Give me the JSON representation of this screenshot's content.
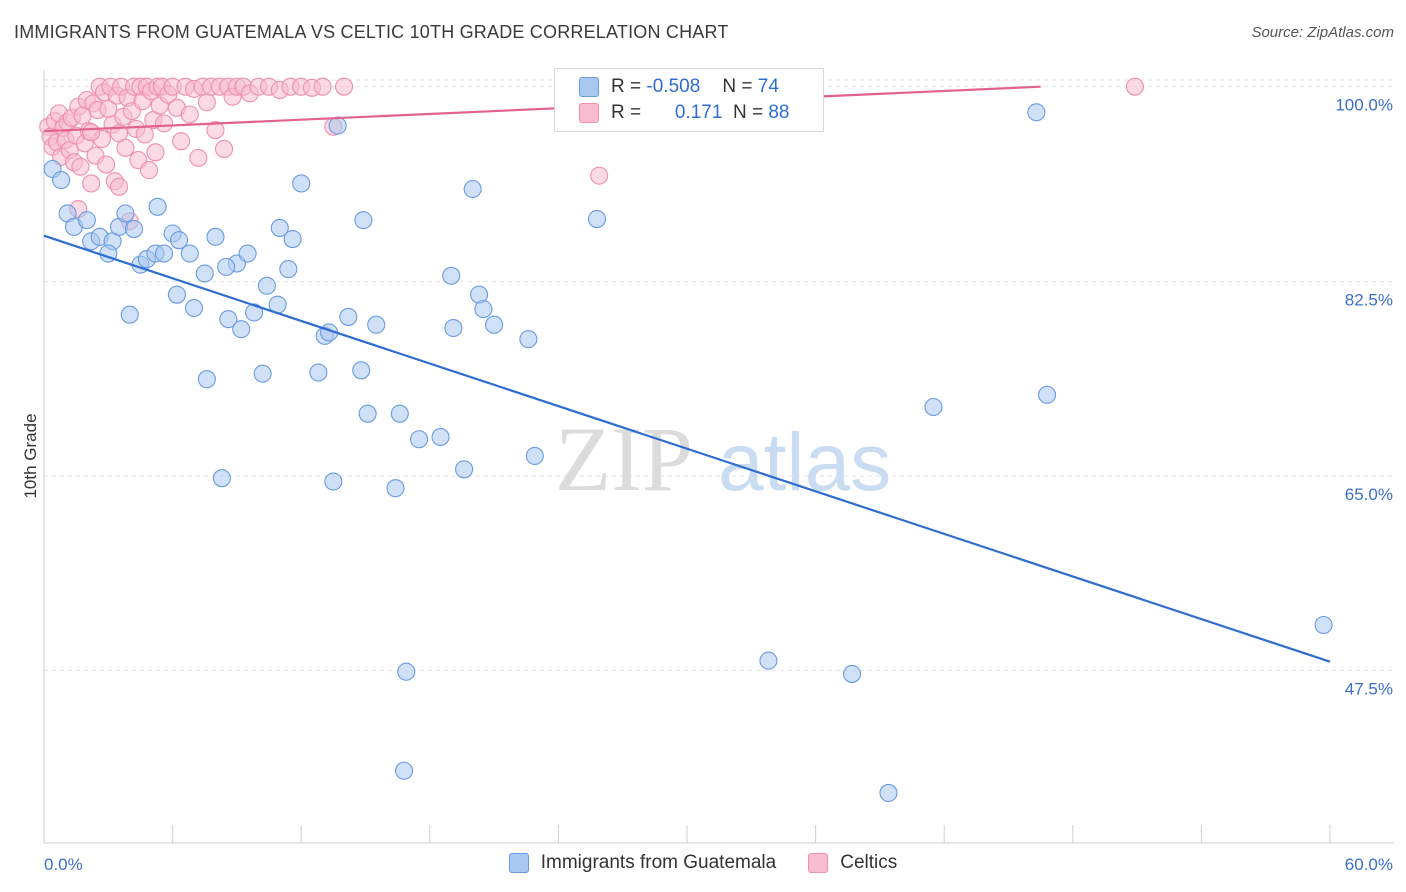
{
  "header": {
    "title": "IMMIGRANTS FROM GUATEMALA VS CELTIC 10TH GRADE CORRELATION CHART",
    "source": "Source: ZipAtlas.com"
  },
  "watermark": {
    "zip": "ZIP",
    "atlas": "atlas"
  },
  "legend": {
    "r_label": "R =",
    "n_label": "N =",
    "rows": [
      {
        "r": "-0.508",
        "n": "74",
        "color": "#a9c8f0",
        "border": "#6a9be0"
      },
      {
        "r": "0.171",
        "n": "88",
        "color": "#f8bcd0",
        "border": "#ee8fb0"
      }
    ]
  },
  "chart_data": {
    "type": "scatter",
    "title": "IMMIGRANTS FROM GUATEMALA VS CELTIC 10TH GRADE CORRELATION CHART",
    "xlabel": "",
    "ylabel": "10th Grade",
    "xlim": [
      0,
      60
    ],
    "ylim": [
      32,
      101.5
    ],
    "x_tick_labels": [
      "0.0%",
      "60.0%"
    ],
    "y_ticks": [
      47.5,
      65.0,
      82.5,
      100.0
    ],
    "y_tick_labels": [
      "47.5%",
      "65.0%",
      "82.5%",
      "100.0%"
    ],
    "grid": "horizontal dashed",
    "legend_placement": "bottom-center",
    "series": [
      {
        "name": "Immigrants from Guatemala",
        "color": "#a9c8f0",
        "edge": "#6a9be0",
        "trend": {
          "x": [
            0,
            60
          ],
          "y": [
            86.6,
            48.3
          ],
          "color": "#2f6dd1"
        },
        "points": [
          [
            0.4,
            92.6
          ],
          [
            0.8,
            91.6
          ],
          [
            1.1,
            88.6
          ],
          [
            1.4,
            87.4
          ],
          [
            2.0,
            88.0
          ],
          [
            2.2,
            86.1
          ],
          [
            2.6,
            86.5
          ],
          [
            3.2,
            86.1
          ],
          [
            3.5,
            87.4
          ],
          [
            3.8,
            88.6
          ],
          [
            4.0,
            79.5
          ],
          [
            4.5,
            84.0
          ],
          [
            4.8,
            84.5
          ],
          [
            5.2,
            85.0
          ],
          [
            5.3,
            89.2
          ],
          [
            5.6,
            85.0
          ],
          [
            6.0,
            86.8
          ],
          [
            6.2,
            81.3
          ],
          [
            6.8,
            85.0
          ],
          [
            7.0,
            80.1
          ],
          [
            7.5,
            83.2
          ],
          [
            7.6,
            73.7
          ],
          [
            8.0,
            86.5
          ],
          [
            8.3,
            64.8
          ],
          [
            8.6,
            79.1
          ],
          [
            9.0,
            84.1
          ],
          [
            9.2,
            78.2
          ],
          [
            9.5,
            85.0
          ],
          [
            9.8,
            79.7
          ],
          [
            10.2,
            74.2
          ],
          [
            10.4,
            82.1
          ],
          [
            10.9,
            80.4
          ],
          [
            11.0,
            87.3
          ],
          [
            11.4,
            83.6
          ],
          [
            11.6,
            86.3
          ],
          [
            12.0,
            91.3
          ],
          [
            12.8,
            74.3
          ],
          [
            13.1,
            77.6
          ],
          [
            13.3,
            77.9
          ],
          [
            13.5,
            64.5
          ],
          [
            13.7,
            96.5
          ],
          [
            14.2,
            79.3
          ],
          [
            14.8,
            74.5
          ],
          [
            14.9,
            88.0
          ],
          [
            15.1,
            70.6
          ],
          [
            15.5,
            78.6
          ],
          [
            16.4,
            63.9
          ],
          [
            16.6,
            70.6
          ],
          [
            16.8,
            38.5
          ],
          [
            16.9,
            47.4
          ],
          [
            17.5,
            68.3
          ],
          [
            18.5,
            68.5
          ],
          [
            19.0,
            83.0
          ],
          [
            19.1,
            78.3
          ],
          [
            19.6,
            65.6
          ],
          [
            20.0,
            90.8
          ],
          [
            20.3,
            81.3
          ],
          [
            20.5,
            80.0
          ],
          [
            21.0,
            78.6
          ],
          [
            22.6,
            77.3
          ],
          [
            22.9,
            66.8
          ],
          [
            25.8,
            88.1
          ],
          [
            30.5,
            100.0
          ],
          [
            33.8,
            48.4
          ],
          [
            37.7,
            47.2
          ],
          [
            39.4,
            36.5
          ],
          [
            41.5,
            71.2
          ],
          [
            46.3,
            97.7
          ],
          [
            46.8,
            72.3
          ],
          [
            59.7,
            51.6
          ],
          [
            3.0,
            85.0
          ],
          [
            4.2,
            87.2
          ],
          [
            6.3,
            86.2
          ],
          [
            8.5,
            83.8
          ]
        ]
      },
      {
        "name": "Celtics",
        "color": "#f8bcd0",
        "edge": "#ee8fb0",
        "trend": {
          "x": [
            0,
            46.5
          ],
          "y": [
            96.0,
            100.0
          ],
          "color": "#e2618e"
        },
        "points": [
          [
            0.2,
            96.4
          ],
          [
            0.3,
            95.5
          ],
          [
            0.4,
            94.6
          ],
          [
            0.5,
            96.9
          ],
          [
            0.6,
            95.0
          ],
          [
            0.7,
            97.6
          ],
          [
            0.8,
            93.7
          ],
          [
            0.9,
            96.3
          ],
          [
            1.0,
            95.2
          ],
          [
            1.1,
            96.8
          ],
          [
            1.2,
            94.3
          ],
          [
            1.3,
            97.2
          ],
          [
            1.4,
            93.2
          ],
          [
            1.5,
            95.6
          ],
          [
            1.6,
            98.2
          ],
          [
            1.7,
            92.8
          ],
          [
            1.8,
            97.4
          ],
          [
            1.9,
            94.9
          ],
          [
            2.0,
            98.8
          ],
          [
            2.1,
            96.0
          ],
          [
            2.2,
            91.3
          ],
          [
            2.3,
            98.5
          ],
          [
            2.4,
            93.8
          ],
          [
            2.5,
            97.9
          ],
          [
            2.6,
            100.0
          ],
          [
            2.7,
            95.3
          ],
          [
            2.8,
            99.5
          ],
          [
            2.9,
            93.0
          ],
          [
            3.0,
            98.0
          ],
          [
            3.1,
            100.0
          ],
          [
            3.2,
            96.6
          ],
          [
            3.3,
            91.5
          ],
          [
            3.4,
            99.2
          ],
          [
            3.5,
            95.8
          ],
          [
            3.6,
            100.0
          ],
          [
            3.7,
            97.3
          ],
          [
            3.8,
            94.5
          ],
          [
            3.9,
            99.0
          ],
          [
            4.0,
            87.9
          ],
          [
            4.1,
            97.8
          ],
          [
            4.2,
            100.0
          ],
          [
            4.3,
            96.2
          ],
          [
            4.4,
            93.4
          ],
          [
            4.5,
            100.0
          ],
          [
            4.6,
            98.7
          ],
          [
            4.7,
            95.7
          ],
          [
            4.8,
            100.0
          ],
          [
            4.9,
            92.5
          ],
          [
            5.0,
            99.6
          ],
          [
            5.1,
            97.0
          ],
          [
            5.2,
            94.1
          ],
          [
            5.3,
            100.0
          ],
          [
            5.4,
            98.3
          ],
          [
            5.5,
            100.0
          ],
          [
            5.6,
            96.7
          ],
          [
            5.8,
            99.3
          ],
          [
            6.0,
            100.0
          ],
          [
            6.2,
            98.1
          ],
          [
            6.4,
            95.1
          ],
          [
            6.6,
            100.0
          ],
          [
            6.8,
            97.5
          ],
          [
            7.0,
            99.8
          ],
          [
            7.2,
            93.6
          ],
          [
            7.4,
            100.0
          ],
          [
            7.6,
            98.6
          ],
          [
            7.8,
            100.0
          ],
          [
            8.0,
            96.1
          ],
          [
            8.2,
            100.0
          ],
          [
            8.4,
            94.4
          ],
          [
            8.6,
            100.0
          ],
          [
            8.8,
            99.1
          ],
          [
            9.0,
            100.0
          ],
          [
            9.3,
            100.0
          ],
          [
            9.6,
            99.4
          ],
          [
            10.0,
            100.0
          ],
          [
            10.5,
            100.0
          ],
          [
            11.0,
            99.7
          ],
          [
            11.5,
            100.0
          ],
          [
            12.0,
            100.0
          ],
          [
            12.5,
            99.9
          ],
          [
            13.0,
            100.0
          ],
          [
            13.5,
            96.4
          ],
          [
            14.0,
            100.0
          ],
          [
            25.9,
            92.0
          ],
          [
            50.9,
            100.0
          ],
          [
            1.6,
            89.0
          ],
          [
            2.2,
            95.9
          ],
          [
            3.5,
            91.0
          ]
        ]
      }
    ]
  },
  "bottom_legend": {
    "items": [
      {
        "label": "Immigrants from Guatemala",
        "color": "#a9c8f0",
        "border": "#6a9be0"
      },
      {
        "label": "Celtics",
        "color": "#f8bcd0",
        "border": "#ee8fb0"
      }
    ]
  }
}
